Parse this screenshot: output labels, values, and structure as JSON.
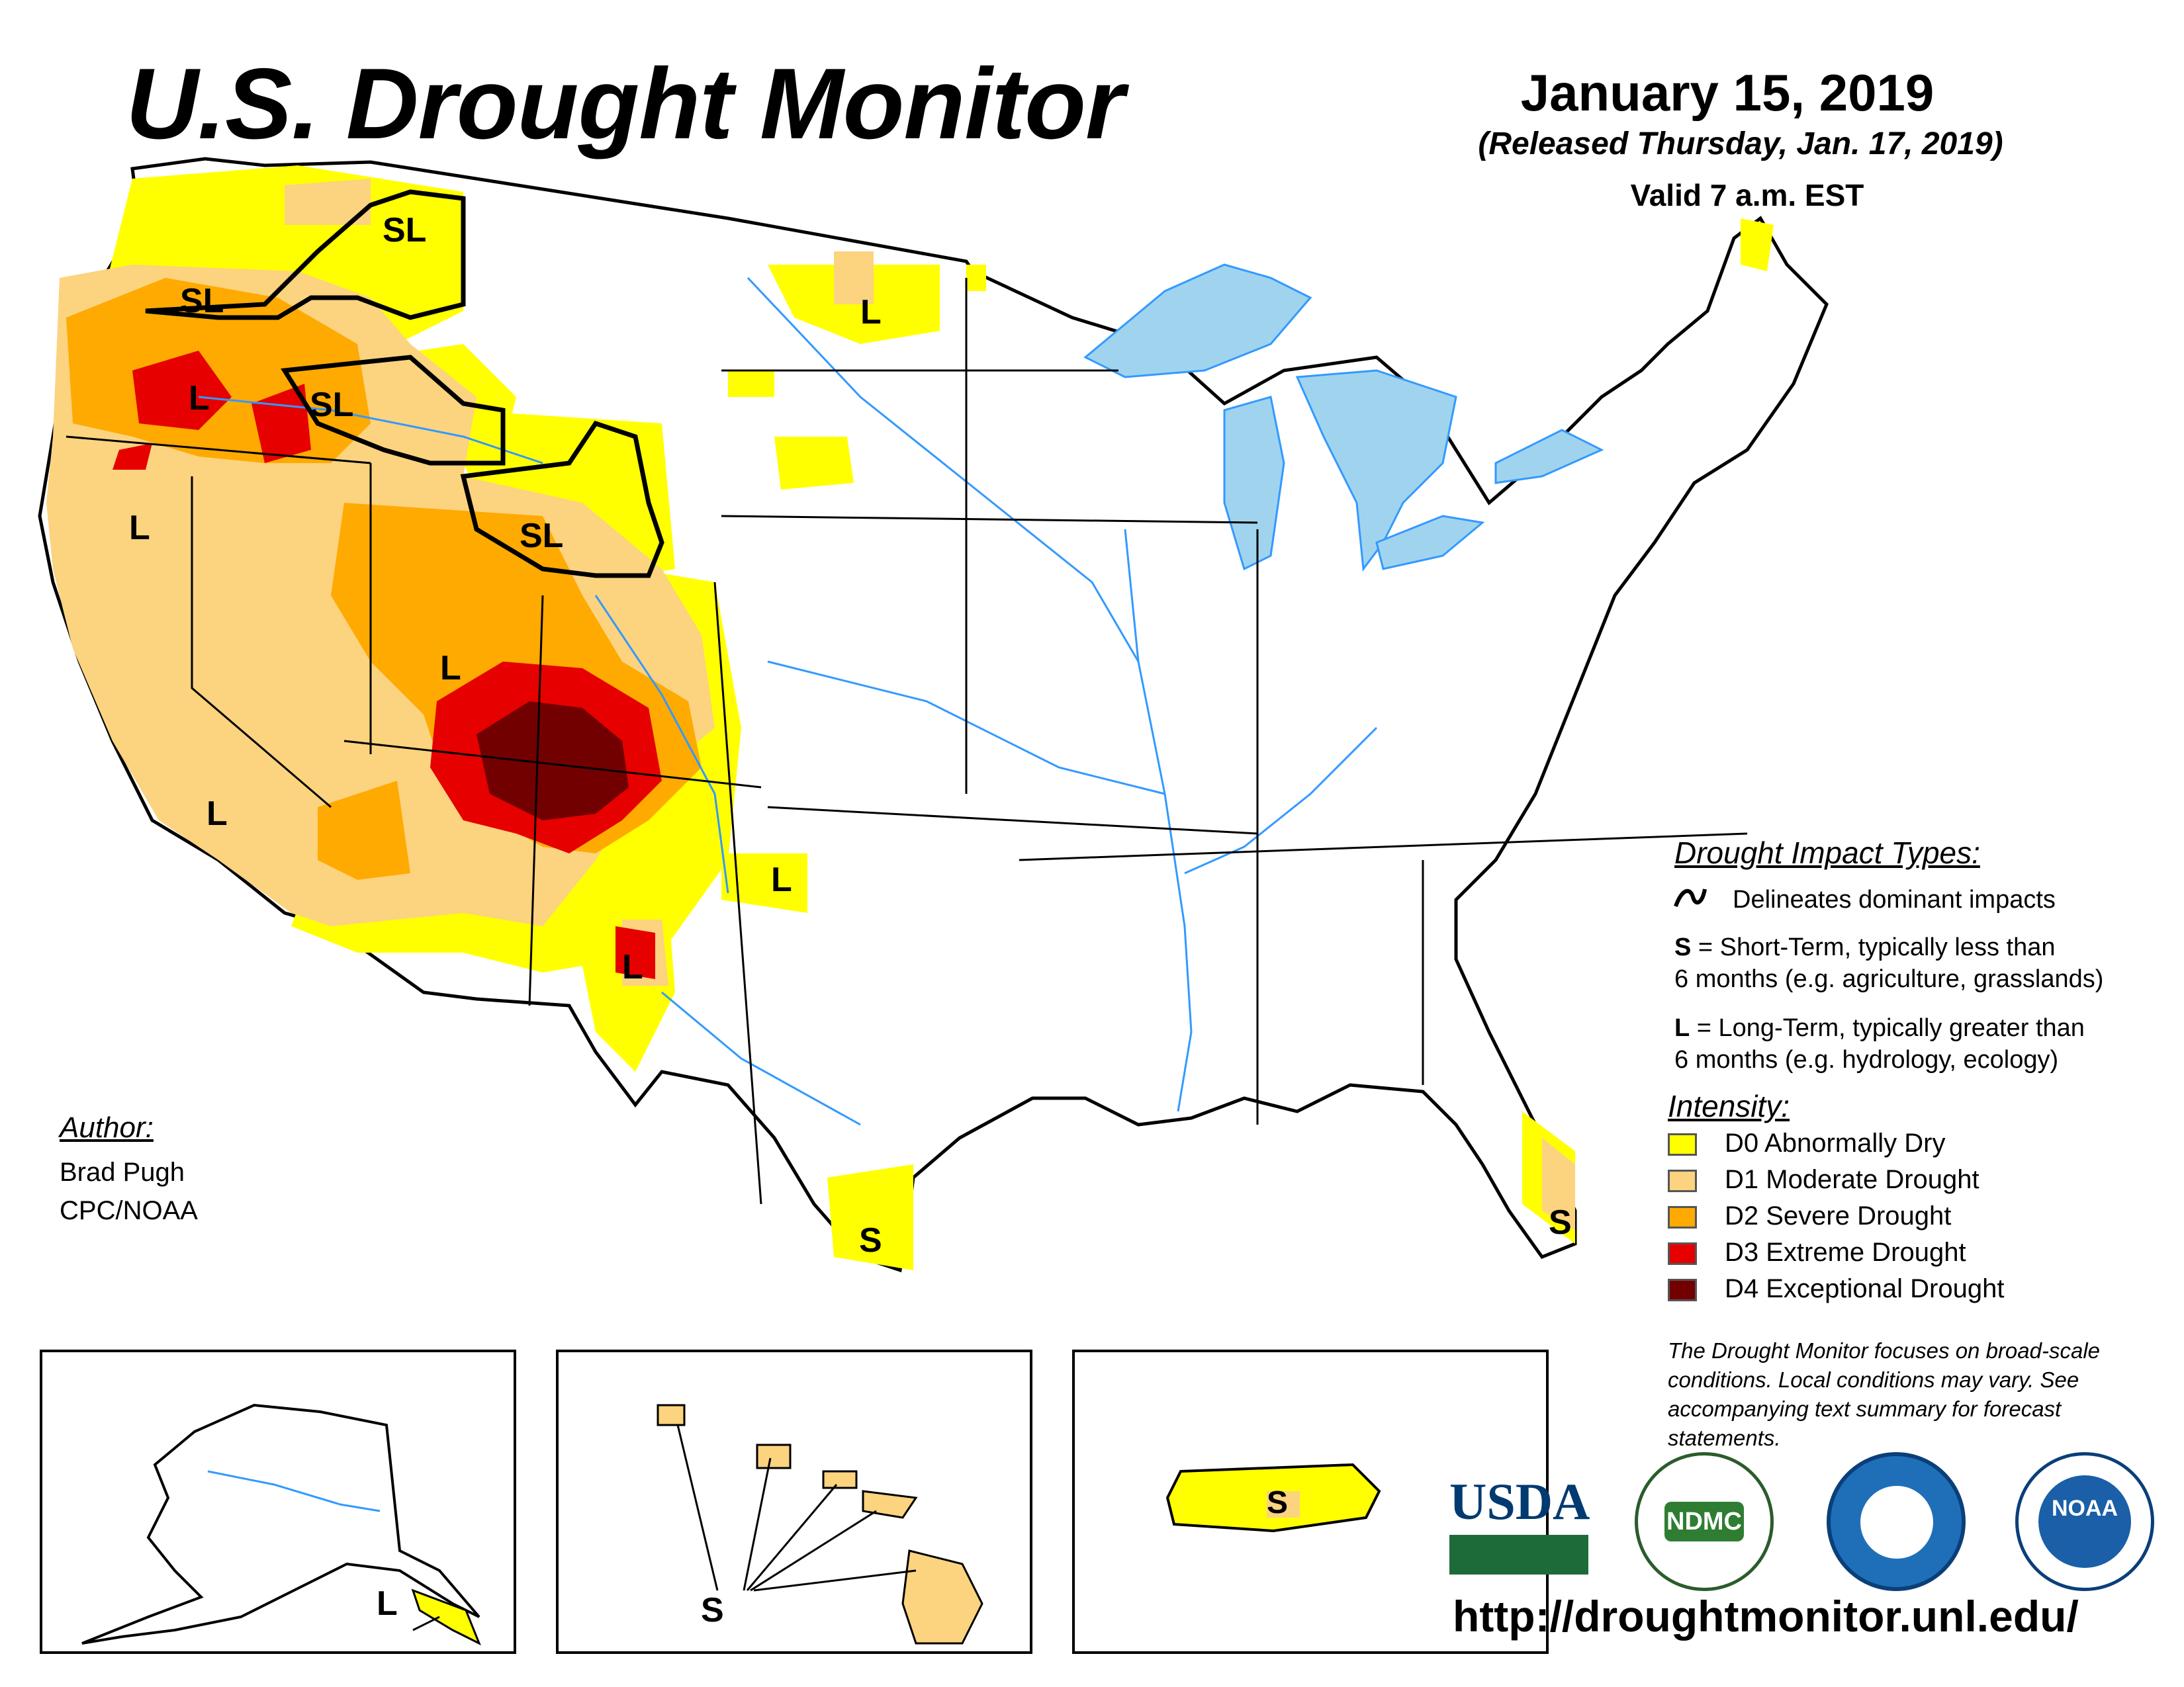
{
  "header": {
    "title": "U.S. Drought Monitor",
    "date": "January 15, 2019",
    "released": "(Released Thursday, Jan. 17, 2019)",
    "valid": "Valid 7 a.m. EST"
  },
  "map_labels": {
    "oregon_washington_sl": "SL",
    "montana_sl": "SL",
    "idaho_sl": "SL",
    "wyoming_sl": "SL",
    "north_dakota_l": "L",
    "oregon_l": "L",
    "california_north_l": "L",
    "utah_l": "L",
    "california_south_l": "L",
    "oklahoma_l": "L",
    "new_mexico_l": "L",
    "texas_s": "S",
    "florida_s": "S",
    "alaska_l": "L",
    "hawaii_s": "S",
    "puerto_rico_s": "S"
  },
  "impact_legend": {
    "heading": "Drought Impact Types:",
    "delineates": "Delineates dominant impacts",
    "short_key": "S",
    "short_line1": " = Short-Term, typically less than",
    "short_line2": "6 months (e.g. agriculture, grasslands)",
    "long_key": "L",
    "long_line1": " = Long-Term, typically greater than",
    "long_line2": "6 months (e.g. hydrology, ecology)"
  },
  "intensity_legend": {
    "heading": "Intensity:",
    "items": [
      {
        "label": "D0 Abnormally Dry",
        "color": "#ffff00"
      },
      {
        "label": "D1 Moderate Drought",
        "color": "#fcd37f"
      },
      {
        "label": "D2 Severe Drought",
        "color": "#ffaa00"
      },
      {
        "label": "D3 Extreme Drought",
        "color": "#e60000"
      },
      {
        "label": "D4 Exceptional Drought",
        "color": "#730000"
      }
    ]
  },
  "author": {
    "label": "Author:",
    "name": "Brad Pugh",
    "org": "CPC/NOAA"
  },
  "note": "The Drought Monitor focuses on broad-scale conditions. Local conditions may vary. See accompanying text summary for forecast statements.",
  "logos": {
    "usda": "USDA",
    "ndmc": "NDMC",
    "noaa": "NOAA"
  },
  "url": "http://droughtmonitor.unl.edu/",
  "colors": {
    "water": "#a0d4ee",
    "river": "#3399ff",
    "d0": "#ffff00",
    "d1": "#fcd37f",
    "d2": "#ffaa00",
    "d3": "#e60000",
    "d4": "#730000"
  }
}
